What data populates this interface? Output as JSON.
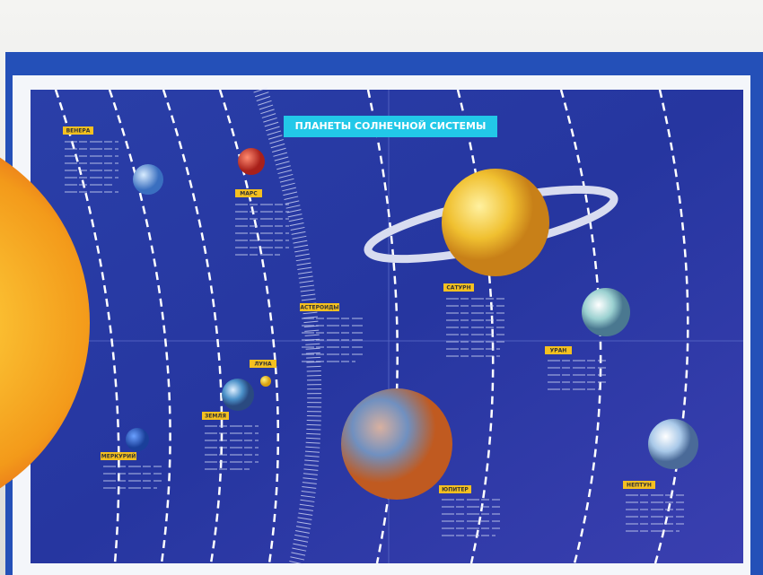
{
  "title": "ПЛАНЕТЫ СОЛНЕЧНОЙ СИСТЕМЫ",
  "labels": {
    "venus": "ВЕНЕРА",
    "mars": "МАРС",
    "asteroids": "АСТЕРОИДЫ",
    "moon": "ЛУНА",
    "earth": "ЗЕМЛЯ",
    "mercury": "МЕРКУРИЙ",
    "saturn": "САТУРН",
    "uranus": "УРАН",
    "jupiter": "ЮПИТЕР",
    "neptune": "НЕПТУН"
  }
}
